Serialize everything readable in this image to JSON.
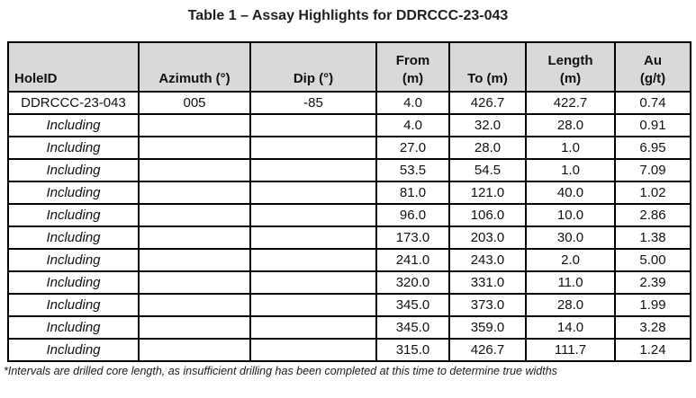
{
  "title": "Table 1 – Assay Highlights for DDRCCC-23-043",
  "table": {
    "columns": [
      {
        "label": "HoleID"
      },
      {
        "label": "Azimuth (°)"
      },
      {
        "label": "Dip (°)"
      },
      {
        "label": "From\n(m)"
      },
      {
        "label": "To (m)"
      },
      {
        "label": "Length\n(m)"
      },
      {
        "label": "Au\n(g/t)"
      }
    ],
    "rows": [
      [
        "DDRCCC-23-043",
        "005",
        "-85",
        "4.0",
        "426.7",
        "422.7",
        "0.74"
      ],
      [
        "Including",
        "",
        "",
        "4.0",
        "32.0",
        "28.0",
        "0.91"
      ],
      [
        "Including",
        "",
        "",
        "27.0",
        "28.0",
        "1.0",
        "6.95"
      ],
      [
        "Including",
        "",
        "",
        "53.5",
        "54.5",
        "1.0",
        "7.09"
      ],
      [
        "Including",
        "",
        "",
        "81.0",
        "121.0",
        "40.0",
        "1.02"
      ],
      [
        "Including",
        "",
        "",
        "96.0",
        "106.0",
        "10.0",
        "2.86"
      ],
      [
        "Including",
        "",
        "",
        "173.0",
        "203.0",
        "30.0",
        "1.38"
      ],
      [
        "Including",
        "",
        "",
        "241.0",
        "243.0",
        "2.0",
        "5.00"
      ],
      [
        "Including",
        "",
        "",
        "320.0",
        "331.0",
        "11.0",
        "2.39"
      ],
      [
        "Including",
        "",
        "",
        "345.0",
        "373.0",
        "28.0",
        "1.99"
      ],
      [
        "Including",
        "",
        "",
        "345.0",
        "359.0",
        "14.0",
        "3.28"
      ],
      [
        "Including",
        "",
        "",
        "315.0",
        "426.7",
        "111.7",
        "1.24"
      ]
    ]
  },
  "footnote": "*Intervals are drilled core length, as insufficient drilling has been completed at this time to determine true widths",
  "colors": {
    "header_bg": "#d9d9d9",
    "border": "#000000",
    "text": "#111111"
  }
}
